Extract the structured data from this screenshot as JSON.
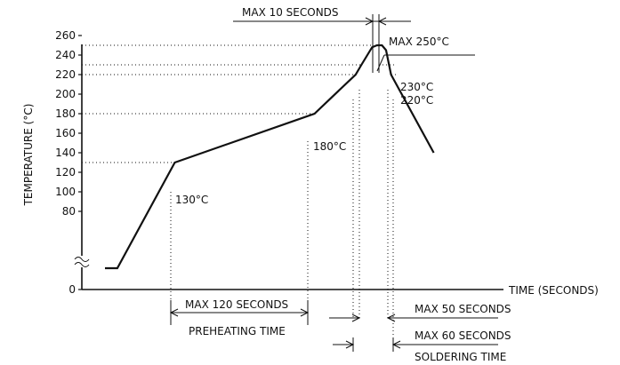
{
  "chart_data": {
    "type": "line",
    "title": "",
    "xlabel": "TIME (SECONDS)",
    "ylabel": "TEMPERATURE (°C)",
    "y_ticks": [
      0,
      80,
      100,
      120,
      140,
      160,
      180,
      200,
      220,
      240,
      260
    ],
    "y_tick_labels": [
      "0",
      "80",
      "100",
      "120",
      "140",
      "160",
      "180",
      "200",
      "220",
      "240",
      "260"
    ],
    "y_axis_break": true,
    "series": [
      {
        "points": [
          {
            "x": 0,
            "y": 0
          },
          {
            "x": 15,
            "y": 0
          },
          {
            "x": 85,
            "y": 130
          },
          {
            "x": 255,
            "y": 180
          },
          {
            "x": 305,
            "y": 220
          },
          {
            "x": 312,
            "y": 230
          },
          {
            "x": 325,
            "y": 248
          },
          {
            "x": 331,
            "y": 250
          },
          {
            "x": 337,
            "y": 250
          },
          {
            "x": 342,
            "y": 245
          },
          {
            "x": 348,
            "y": 220
          },
          {
            "x": 400,
            "y": 140
          }
        ]
      }
    ],
    "annotations": {
      "point_labels": [
        {
          "text": "130°C",
          "x": 85,
          "y": 130
        },
        {
          "text": "180°C",
          "x": 255,
          "y": 180
        },
        {
          "text": "230°C",
          "x": 342,
          "y": 230
        },
        {
          "text": "220°C",
          "x": 348,
          "y": 220
        },
        {
          "text": "MAX 250°C",
          "x": 331,
          "y": 250
        }
      ],
      "reference_lines": [
        {
          "y": 250,
          "x_end": 325
        },
        {
          "y": 230,
          "x_end": 312
        },
        {
          "y": 220,
          "x_end": 305
        },
        {
          "y": 180,
          "x_end": 255
        },
        {
          "y": 130,
          "x_end": 85
        }
      ],
      "interval_labels": [
        {
          "id": "max10",
          "text": "MAX 10 SECONDS"
        },
        {
          "id": "max120",
          "text": "MAX 120 SECONDS"
        },
        {
          "id": "preheat",
          "text": "PREHEATING TIME"
        },
        {
          "id": "max50",
          "text": "MAX 50 SECONDS"
        },
        {
          "id": "max60",
          "text": "MAX 60 SECONDS"
        },
        {
          "id": "solder",
          "text": "SOLDERING TIME"
        }
      ]
    },
    "grid": false,
    "legend": "none"
  }
}
